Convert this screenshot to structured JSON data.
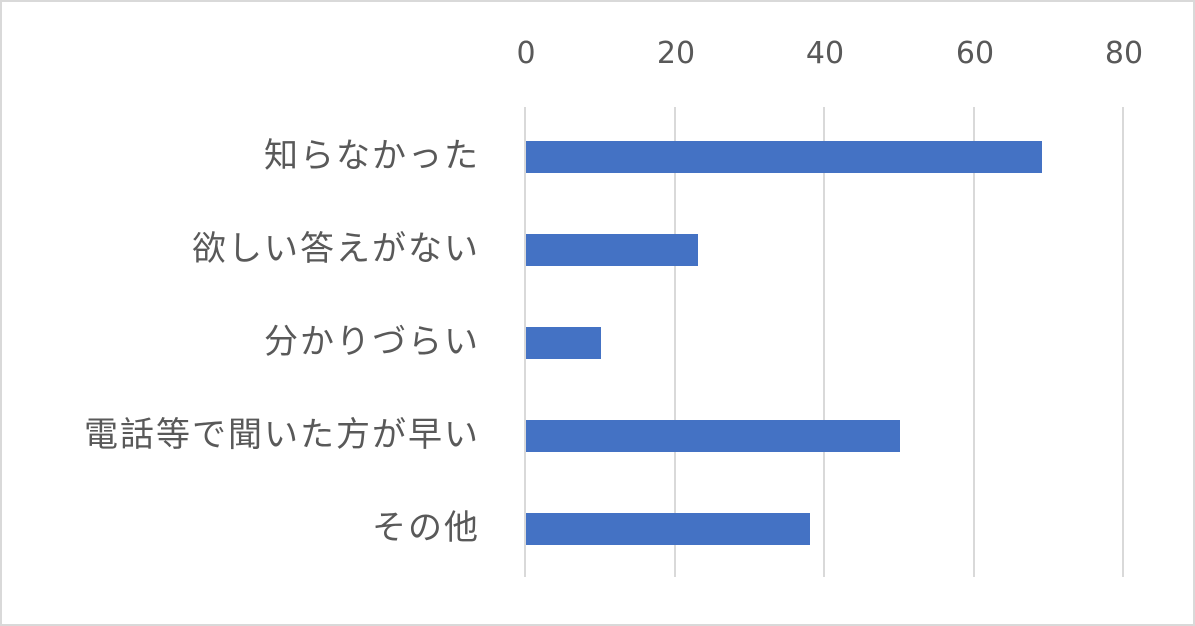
{
  "chart_data": {
    "type": "bar",
    "orientation": "horizontal",
    "title": "",
    "xlabel": "",
    "ylabel": "",
    "categories": [
      "知らなかった",
      "欲しい答えがない",
      "分かりづらい",
      "電話等で聞いた方が早い",
      "その他"
    ],
    "values": [
      69,
      23,
      10,
      50,
      38
    ],
    "xlim": [
      0,
      80
    ],
    "x_ticks": [
      "0",
      "20",
      "40",
      "60",
      "80"
    ],
    "x_axis_position": "top",
    "grid": true,
    "legend": null,
    "bar_color": "#4472c4"
  },
  "axis": {
    "ticks": [
      "0",
      "20",
      "40",
      "60",
      "80"
    ]
  },
  "categories": [
    "知らなかった",
    "欲しい答えがない",
    "分かりづらい",
    "電話等で聞いた方が早い",
    "その他"
  ],
  "colors": {
    "bar": "#4472c4",
    "grid": "#d9d9d9",
    "text": "#595959",
    "border": "#d9d9d9"
  }
}
